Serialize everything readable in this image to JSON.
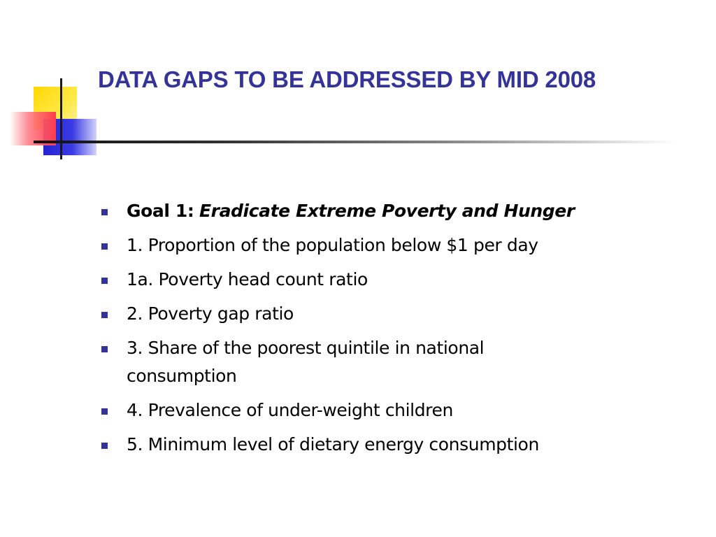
{
  "slide": {
    "title": "DATA GAPS TO BE ADDRESSED BY MID 2008",
    "goal": {
      "label": "Goal 1:",
      "name": "Eradicate Extreme Poverty and Hunger"
    },
    "items": [
      "1. Proportion of the population below $1 per day",
      "1a. Poverty head count ratio",
      "2. Poverty gap ratio",
      "3. Share of the poorest quintile in national consumption",
      "4. Prevalence of under-weight children",
      "5. Minimum level of dietary energy consumption"
    ]
  },
  "colors": {
    "title": "#333399",
    "bullet": "#333399",
    "text": "#000000",
    "decor_yellow": "#ffd700",
    "decor_red": "#ff3c4c",
    "decor_blue": "#2323d6"
  }
}
